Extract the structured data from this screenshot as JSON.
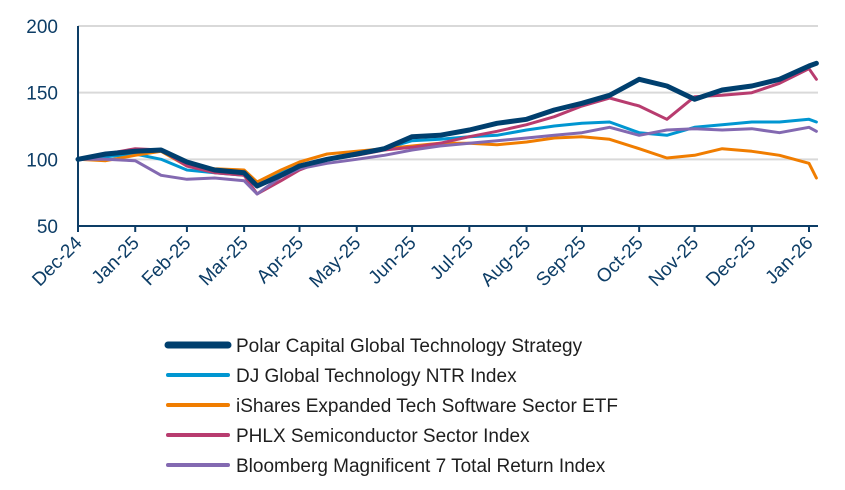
{
  "chart_data": {
    "type": "line",
    "title": "",
    "xlabel": "",
    "ylabel": "",
    "ylim": [
      50,
      200
    ],
    "yticks": [
      "50",
      "100",
      "150",
      "200"
    ],
    "grid": "horizontal",
    "legend_position": "bottom",
    "xtick_labels": [
      "Dec-24",
      "Jan-25",
      "Feb-25",
      "Mar-25",
      "Apr-25",
      "May-25",
      "Jun-25",
      "Jul-25",
      "Aug-25",
      "Sep-25",
      "Oct-25",
      "Nov-25",
      "Dec-25",
      "Jan-26"
    ],
    "x": [
      "2024-12-31",
      "2025-01-15",
      "2025-01-31",
      "2025-02-14",
      "2025-02-28",
      "2025-03-15",
      "2025-03-31",
      "2025-04-07",
      "2025-04-20",
      "2025-04-30",
      "2025-05-15",
      "2025-05-31",
      "2025-06-15",
      "2025-06-30",
      "2025-07-15",
      "2025-07-31",
      "2025-08-15",
      "2025-08-31",
      "2025-09-15",
      "2025-09-30",
      "2025-10-15",
      "2025-10-31",
      "2025-11-15",
      "2025-11-30",
      "2025-12-15",
      "2025-12-31",
      "2026-01-15",
      "2026-01-31",
      "2026-02-04"
    ],
    "series": [
      {
        "name": "Polar Capital Global Technology Strategy",
        "color": "#003f6e",
        "width": 5,
        "values": [
          100,
          104,
          106,
          107,
          98,
          92,
          90,
          80,
          88,
          95,
          100,
          104,
          108,
          117,
          118,
          122,
          127,
          130,
          137,
          142,
          148,
          160,
          155,
          145,
          152,
          155,
          160,
          170,
          172
        ]
      },
      {
        "name": "DJ Global Technology NTR Index",
        "color": "#0096d1",
        "width": 3,
        "values": [
          100,
          102,
          104,
          100,
          92,
          90,
          88,
          80,
          90,
          95,
          100,
          104,
          108,
          114,
          115,
          117,
          118,
          122,
          125,
          127,
          128,
          120,
          118,
          124,
          126,
          128,
          128,
          130,
          128
        ]
      },
      {
        "name": "iShares Expanded Tech Software Sector ETF",
        "color": "#f07d00",
        "width": 3,
        "values": [
          100,
          99,
          103,
          106,
          95,
          93,
          92,
          83,
          92,
          98,
          104,
          106,
          108,
          110,
          112,
          112,
          111,
          113,
          116,
          117,
          115,
          108,
          101,
          103,
          108,
          106,
          103,
          97,
          86
        ]
      },
      {
        "name": "PHLX Semiconductor Sector Index",
        "color": "#b83c6f",
        "width": 3,
        "values": [
          100,
          104,
          108,
          107,
          95,
          90,
          88,
          74,
          84,
          92,
          100,
          103,
          107,
          109,
          112,
          117,
          121,
          126,
          132,
          140,
          146,
          140,
          130,
          147,
          148,
          150,
          157,
          168,
          160
        ]
      },
      {
        "name": "Bloomberg Magnificent 7 Total Return Index",
        "color": "#8369b1",
        "width": 3,
        "values": [
          100,
          100,
          99,
          88,
          85,
          86,
          84,
          74,
          87,
          93,
          97,
          100,
          103,
          107,
          110,
          112,
          114,
          116,
          118,
          120,
          124,
          118,
          122,
          123,
          122,
          123,
          120,
          124,
          121
        ]
      }
    ]
  }
}
